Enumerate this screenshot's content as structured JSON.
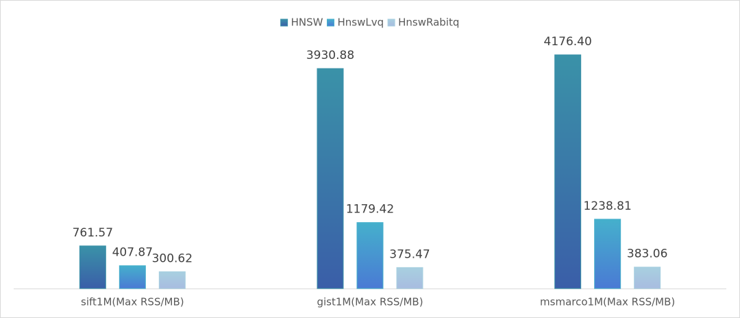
{
  "chart_data": {
    "type": "bar",
    "categories": [
      "sift1M(Max RSS/MB)",
      "gist1M(Max RSS/MB)",
      "msmarco1M(Max RSS/MB)"
    ],
    "series": [
      {
        "name": "HNSW",
        "color": "#3a92a8",
        "values": [
          761.57,
          3930.88,
          4176.4
        ],
        "value_labels": [
          "761.57",
          "3930.88",
          "4176.40"
        ]
      },
      {
        "name": "HnswLvq",
        "color": "#45b0cc",
        "values": [
          407.87,
          1179.42,
          1238.81
        ],
        "value_labels": [
          "407.87",
          "1179.42",
          "1238.81"
        ]
      },
      {
        "name": "HnswRabitq",
        "color": "#a8d0e0",
        "values": [
          300.62,
          375.47,
          383.06
        ],
        "value_labels": [
          "300.62",
          "375.47",
          "383.06"
        ]
      }
    ],
    "legend": "top"
  }
}
